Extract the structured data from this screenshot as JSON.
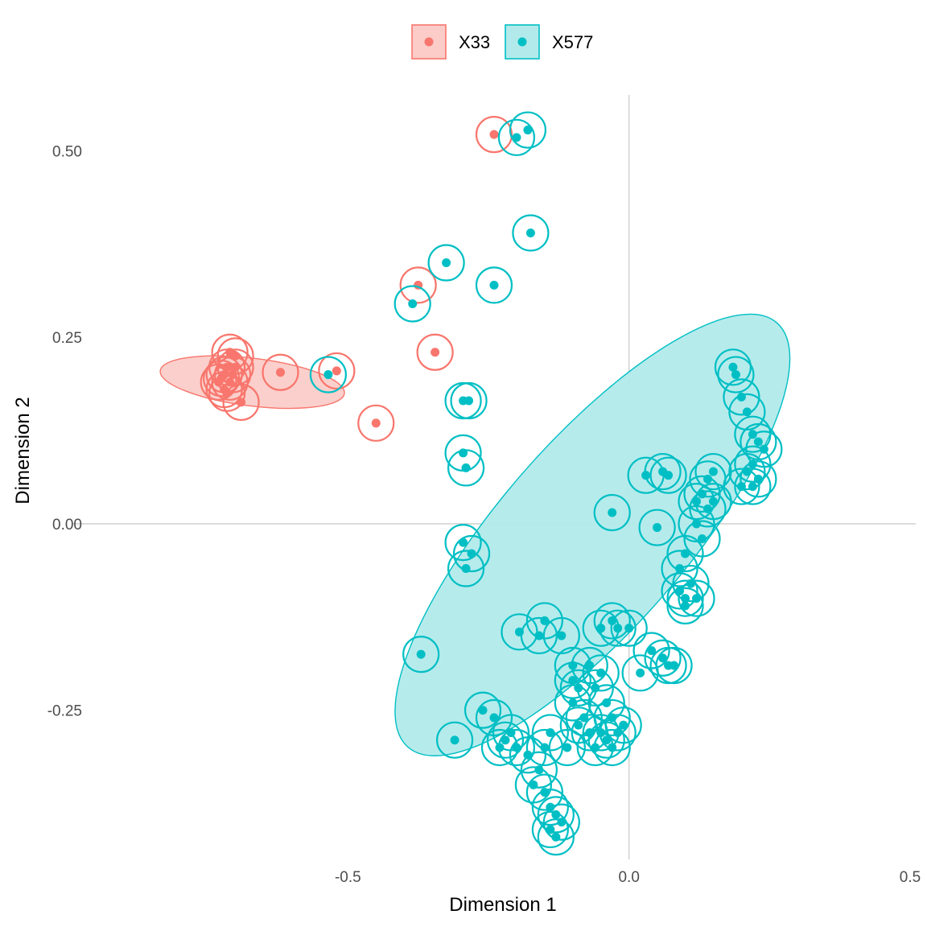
{
  "chart_data": {
    "type": "scatter",
    "xlabel": "Dimension 1",
    "ylabel": "Dimension 2",
    "xlim": [
      -0.99,
      0.51
    ],
    "ylim": [
      -0.45,
      0.575
    ],
    "x_ticks": [
      {
        "value": -0.5,
        "label": "-0.5"
      },
      {
        "value": 0.0,
        "label": "0.0"
      },
      {
        "value": 0.5,
        "label": "0.5"
      }
    ],
    "y_ticks": [
      {
        "value": 0.5,
        "label": "0.50"
      },
      {
        "value": 0.25,
        "label": "0.25"
      },
      {
        "value": 0.0,
        "label": "0.00"
      },
      {
        "value": -0.25,
        "label": "-0.25"
      }
    ],
    "zero_lines": true,
    "legend_position": "top",
    "series": [
      {
        "name": "X33",
        "color": "#F8766D",
        "fill": "#FBCCC8",
        "ellipse": {
          "cx": -0.67,
          "cy": 0.19,
          "rx": 0.165,
          "ry": 0.032,
          "angle_deg": -7
        },
        "points": [
          [
            -0.24,
            0.522
          ],
          [
            -0.375,
            0.32
          ],
          [
            -0.345,
            0.23
          ],
          [
            -0.45,
            0.135
          ],
          [
            -0.52,
            0.205
          ],
          [
            -0.62,
            0.203
          ],
          [
            -0.69,
            0.163
          ],
          [
            -0.7,
            0.225
          ],
          [
            -0.71,
            0.23
          ],
          [
            -0.715,
            0.21
          ],
          [
            -0.72,
            0.2
          ],
          [
            -0.725,
            0.195
          ],
          [
            -0.73,
            0.19
          ],
          [
            -0.72,
            0.18
          ],
          [
            -0.71,
            0.19
          ],
          [
            -0.705,
            0.2
          ],
          [
            -0.7,
            0.21
          ],
          [
            -0.715,
            0.175
          ]
        ]
      },
      {
        "name": "X577",
        "color": "#00BFC4",
        "fill": "#B2EAEB",
        "ellipse": {
          "cx": -0.065,
          "cy": -0.015,
          "rx": 0.5,
          "ry": 0.125,
          "angle_deg": 49
        },
        "points": [
          [
            -0.2,
            0.518
          ],
          [
            -0.18,
            0.528
          ],
          [
            -0.175,
            0.39
          ],
          [
            -0.24,
            0.32
          ],
          [
            -0.325,
            0.35
          ],
          [
            -0.385,
            0.295
          ],
          [
            -0.535,
            0.2
          ],
          [
            -0.295,
            0.165
          ],
          [
            -0.285,
            0.165
          ],
          [
            -0.295,
            0.095
          ],
          [
            -0.29,
            0.075
          ],
          [
            -0.295,
            -0.025
          ],
          [
            -0.28,
            -0.04
          ],
          [
            -0.29,
            -0.06
          ],
          [
            -0.37,
            -0.175
          ],
          [
            -0.195,
            -0.145
          ],
          [
            -0.31,
            -0.29
          ],
          [
            -0.03,
            0.015
          ],
          [
            0.185,
            0.21
          ],
          [
            0.19,
            0.2
          ],
          [
            0.2,
            0.17
          ],
          [
            0.21,
            0.15
          ],
          [
            0.22,
            0.12
          ],
          [
            0.23,
            0.11
          ],
          [
            0.24,
            0.1
          ],
          [
            0.22,
            0.08
          ],
          [
            0.21,
            0.07
          ],
          [
            0.23,
            0.06
          ],
          [
            0.22,
            0.05
          ],
          [
            0.2,
            0.05
          ],
          [
            0.15,
            0.07
          ],
          [
            0.14,
            0.06
          ],
          [
            0.13,
            0.04
          ],
          [
            0.12,
            0.03
          ],
          [
            0.15,
            0.03
          ],
          [
            0.14,
            0.02
          ],
          [
            0.12,
            0.0
          ],
          [
            0.13,
            -0.02
          ],
          [
            0.06,
            0.07
          ],
          [
            0.07,
            0.065
          ],
          [
            0.03,
            0.065
          ],
          [
            0.05,
            -0.005
          ],
          [
            0.1,
            -0.04
          ],
          [
            0.09,
            -0.06
          ],
          [
            0.11,
            -0.08
          ],
          [
            0.09,
            -0.09
          ],
          [
            0.1,
            -0.1
          ],
          [
            0.12,
            -0.1
          ],
          [
            0.1,
            -0.11
          ],
          [
            0.06,
            -0.18
          ],
          [
            0.07,
            -0.19
          ],
          [
            0.04,
            -0.17
          ],
          [
            0.08,
            -0.19
          ],
          [
            0.02,
            -0.2
          ],
          [
            0.0,
            -0.14
          ],
          [
            -0.03,
            -0.13
          ],
          [
            -0.02,
            -0.14
          ],
          [
            -0.05,
            -0.14
          ],
          [
            -0.15,
            -0.13
          ],
          [
            -0.16,
            -0.15
          ],
          [
            -0.12,
            -0.15
          ],
          [
            -0.1,
            -0.19
          ],
          [
            -0.07,
            -0.19
          ],
          [
            -0.05,
            -0.2
          ],
          [
            -0.06,
            -0.22
          ],
          [
            -0.04,
            -0.24
          ],
          [
            -0.03,
            -0.26
          ],
          [
            -0.01,
            -0.27
          ],
          [
            -0.03,
            -0.3
          ],
          [
            -0.05,
            -0.28
          ],
          [
            -0.09,
            -0.22
          ],
          [
            -0.1,
            -0.24
          ],
          [
            -0.09,
            -0.27
          ],
          [
            -0.11,
            -0.3
          ],
          [
            -0.14,
            -0.28
          ],
          [
            -0.15,
            -0.3
          ],
          [
            -0.16,
            -0.33
          ],
          [
            -0.17,
            -0.35
          ],
          [
            -0.15,
            -0.36
          ],
          [
            -0.14,
            -0.38
          ],
          [
            -0.13,
            -0.39
          ],
          [
            -0.12,
            -0.4
          ],
          [
            -0.14,
            -0.41
          ],
          [
            -0.13,
            -0.42
          ],
          [
            -0.21,
            -0.28
          ],
          [
            -0.22,
            -0.29
          ],
          [
            -0.23,
            -0.3
          ],
          [
            -0.24,
            -0.26
          ],
          [
            -0.26,
            -0.25
          ],
          [
            -0.2,
            -0.3
          ],
          [
            -0.18,
            -0.31
          ],
          [
            -0.06,
            -0.3
          ],
          [
            -0.04,
            -0.29
          ],
          [
            -0.02,
            -0.28
          ],
          [
            -0.07,
            -0.28
          ],
          [
            -0.08,
            -0.26
          ],
          [
            -0.1,
            -0.21
          ]
        ]
      }
    ]
  }
}
